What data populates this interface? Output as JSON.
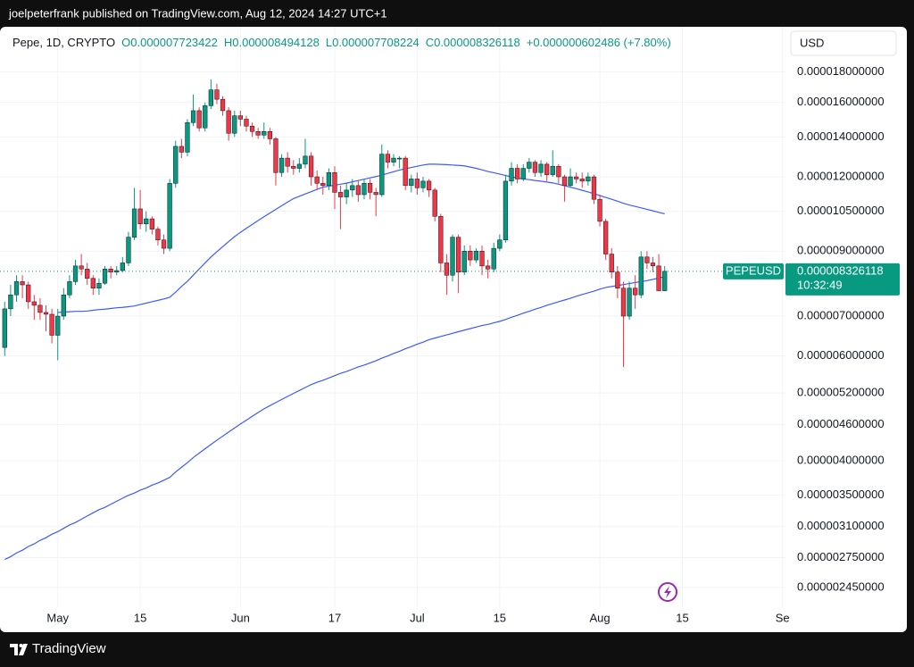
{
  "page": {
    "byline": "joelpeterfrank published on TradingView.com, Aug 12, 2024 14:27 UTC+1",
    "brand": "TradingView"
  },
  "chart_data": {
    "type": "candlestick",
    "symbol_info": "Pepe, 1D, CRYPTO",
    "ohlc_text": [
      "O0.000007723422",
      "H0.000008494128",
      "L0.000007708224",
      "C0.000008326118"
    ],
    "change_text": "+0.000000602486 (+7.80%)",
    "currency": "USD",
    "countdown": "10:32:49",
    "log_scale": true,
    "grid": true,
    "up_color": "#089981",
    "down_color": "#f23645",
    "ylim": [
      2.27e-06,
      1.9e-05
    ],
    "yticks": [
      {
        "value": 1.8e-05,
        "label": "0.000018000000"
      },
      {
        "value": 1.6e-05,
        "label": "0.000016000000"
      },
      {
        "value": 1.4e-05,
        "label": "0.000014000000"
      },
      {
        "value": 1.2e-05,
        "label": "0.000012000000"
      },
      {
        "value": 1.05e-05,
        "label": "0.000010500000"
      },
      {
        "value": 9e-06,
        "label": "0.000009000000"
      },
      {
        "value": 7e-06,
        "label": "0.000007000000"
      },
      {
        "value": 6e-06,
        "label": "0.000006000000"
      },
      {
        "value": 5.2e-06,
        "label": "0.000005200000"
      },
      {
        "value": 4.6e-06,
        "label": "0.000004600000"
      },
      {
        "value": 4e-06,
        "label": "0.000004000000"
      },
      {
        "value": 3.5e-06,
        "label": "0.000003500000"
      },
      {
        "value": 3.1e-06,
        "label": "0.000003100000"
      },
      {
        "value": 2.75e-06,
        "label": "0.000002750000"
      },
      {
        "value": 2.45e-06,
        "label": "0.000002450000"
      }
    ],
    "categories": [
      null,
      null,
      null,
      null,
      null,
      null,
      null,
      null,
      null,
      "May",
      null,
      null,
      null,
      null,
      null,
      null,
      null,
      null,
      null,
      null,
      null,
      null,
      null,
      "15",
      null,
      null,
      null,
      null,
      null,
      null,
      null,
      null,
      null,
      null,
      null,
      null,
      null,
      null,
      null,
      null,
      "Jun",
      null,
      null,
      null,
      null,
      null,
      null,
      null,
      null,
      null,
      null,
      null,
      null,
      null,
      null,
      null,
      "17",
      null,
      null,
      null,
      null,
      null,
      null,
      null,
      null,
      null,
      null,
      null,
      null,
      null,
      "Jul",
      null,
      null,
      null,
      null,
      null,
      null,
      null,
      null,
      null,
      null,
      null,
      null,
      null,
      "15",
      null,
      null,
      null,
      null,
      null,
      null,
      null,
      null,
      null,
      null,
      null,
      null,
      null,
      null,
      null,
      null,
      "Aug",
      null,
      null,
      null,
      null,
      null,
      null,
      null,
      null,
      null,
      null,
      null,
      null,
      null,
      "15",
      null,
      null,
      null,
      null,
      null,
      null,
      null,
      null,
      null,
      null,
      null,
      null,
      null,
      null,
      null,
      null,
      "Se"
    ],
    "series": [
      {
        "name": "PEPEUSD",
        "open": [
          6.2e-06,
          7.2e-06,
          7.6e-06,
          8e-06,
          7.9e-06,
          7.4e-06,
          7.3e-06,
          7.1e-06,
          7.05e-06,
          6.5e-06,
          7e-06,
          7.6e-06,
          8e-06,
          8.5e-06,
          8.4e-06,
          8.1e-06,
          7.8e-06,
          7.95e-06,
          8.4e-06,
          8.3e-06,
          8.35e-06,
          8.6e-06,
          9.5e-06,
          1.06e-05,
          1e-05,
          1.02e-05,
          9.8e-06,
          9.4e-06,
          9.1e-06,
          1.17e-05,
          1.35e-05,
          1.32e-05,
          1.48e-05,
          1.55e-05,
          1.45e-05,
          1.58e-05,
          1.68e-05,
          1.62e-05,
          1.55e-05,
          1.42e-05,
          1.52e-05,
          1.5e-05,
          1.46e-05,
          1.43e-05,
          1.41e-05,
          1.43e-05,
          1.39e-05,
          1.22e-05,
          1.29e-05,
          1.25e-05,
          1.24e-05,
          1.26e-05,
          1.3e-05,
          1.2e-05,
          1.17e-05,
          1.16e-05,
          1.22e-05,
          1.13e-05,
          1.11e-05,
          1.14e-05,
          1.16e-05,
          1.12e-05,
          1.17e-05,
          1.13e-05,
          1.12e-05,
          1.31e-05,
          1.27e-05,
          1.29e-05,
          1.29e-05,
          1.16e-05,
          1.19e-05,
          1.15e-05,
          1.18e-05,
          1.14e-05,
          1.03e-05,
          8.6e-06,
          8.2e-06,
          9.5e-06,
          8.3e-06,
          9e-06,
          8.7e-06,
          9e-06,
          8.5e-06,
          8.4e-06,
          9.1e-06,
          9.4e-06,
          1.18e-05,
          1.24e-05,
          1.19e-05,
          1.24e-05,
          1.27e-05,
          1.22e-05,
          1.26e-05,
          1.21e-05,
          1.25e-05,
          1.2e-05,
          1.16e-05,
          1.2e-05,
          1.19e-05,
          1.18e-05,
          1.2e-05,
          1.1e-05,
          1.01e-05,
          8.9e-06,
          8.3e-06,
          7.8e-06,
          7e-06,
          7.8e-06,
          7.6e-06,
          8.8e-06,
          8.6e-06,
          8.5e-06,
          7.723422e-06,
          null,
          null,
          null,
          null,
          null,
          null,
          null,
          null,
          null,
          null,
          null,
          null,
          null,
          null,
          null,
          null,
          null,
          null,
          null,
          null
        ],
        "high": [
          7.4e-06,
          7.9e-06,
          8.2e-06,
          8.2e-06,
          8e-06,
          7.6e-06,
          7.5e-06,
          7.3e-06,
          7.2e-06,
          7.2e-06,
          7.8e-06,
          8.2e-06,
          8.7e-06,
          8.9e-06,
          8.6e-06,
          8.2e-06,
          8.1e-06,
          8.5e-06,
          8.5e-06,
          8.5e-06,
          8.8e-06,
          9.7e-06,
          1.15e-05,
          1.14e-05,
          1.05e-05,
          1.03e-05,
          9.9e-06,
          9.6e-06,
          1.19e-05,
          1.38e-05,
          1.39e-05,
          1.5e-05,
          1.65e-05,
          1.57e-05,
          1.6e-05,
          1.75e-05,
          1.72e-05,
          1.64e-05,
          1.57e-05,
          1.55e-05,
          1.55e-05,
          1.52e-05,
          1.48e-05,
          1.45e-05,
          1.48e-05,
          1.45e-05,
          1.4e-05,
          1.31e-05,
          1.32e-05,
          1.28e-05,
          1.29e-05,
          1.39e-05,
          1.32e-05,
          1.23e-05,
          1.2e-05,
          1.24e-05,
          1.25e-05,
          1.16e-05,
          1.17e-05,
          1.19e-05,
          1.18e-05,
          1.19e-05,
          1.19e-05,
          1.15e-05,
          1.36e-05,
          1.33e-05,
          1.31e-05,
          1.3e-05,
          1.3e-05,
          1.21e-05,
          1.22e-05,
          1.2e-05,
          1.19e-05,
          1.15e-05,
          1.04e-05,
          8.9e-06,
          9.6e-06,
          9.6e-06,
          9.2e-06,
          9.2e-06,
          9.1e-06,
          9.2e-06,
          8.7e-06,
          9.3e-06,
          9.6e-06,
          1.21e-05,
          1.27e-05,
          1.26e-05,
          1.26e-05,
          1.29e-05,
          1.28e-05,
          1.28e-05,
          1.27e-05,
          1.33e-05,
          1.26e-05,
          1.21e-05,
          1.24e-05,
          1.22e-05,
          1.22e-05,
          1.22e-05,
          1.21e-05,
          1.12e-05,
          1.02e-05,
          9.1e-06,
          8.5e-06,
          8e-06,
          8e-06,
          8.2e-06,
          9e-06,
          9e-06,
          8.8e-06,
          8.9e-06,
          8.494128e-06,
          null,
          null,
          null,
          null,
          null,
          null,
          null,
          null,
          null,
          null,
          null,
          null,
          null,
          null,
          null,
          null,
          null,
          null,
          null,
          null
        ],
        "low": [
          6e-06,
          7e-06,
          7.4e-06,
          7.5e-06,
          7.2e-06,
          6.9e-06,
          6.9e-06,
          6.6e-06,
          6.3e-06,
          5.9e-06,
          6.9e-06,
          7.5e-06,
          7.9e-06,
          8.2e-06,
          7.9e-06,
          7.6e-06,
          7.6e-06,
          7.9e-06,
          8.1e-06,
          8.2e-06,
          8.3e-06,
          8.5e-06,
          9.4e-06,
          9.8e-06,
          9.7e-06,
          9.6e-06,
          9.2e-06,
          8.9e-06,
          9e-06,
          1.15e-05,
          1.29e-05,
          1.3e-05,
          1.46e-05,
          1.43e-05,
          1.43e-05,
          1.56e-05,
          1.59e-05,
          1.52e-05,
          1.38e-05,
          1.4e-05,
          1.46e-05,
          1.43e-05,
          1.4e-05,
          1.39e-05,
          1.39e-05,
          1.36e-05,
          1.16e-05,
          1.2e-05,
          1.22e-05,
          1.21e-05,
          1.22e-05,
          1.24e-05,
          1.16e-05,
          1.14e-05,
          1.12e-05,
          1.14e-05,
          1.06e-05,
          9.8e-06,
          1.08e-05,
          1.11e-05,
          1.09e-05,
          1.1e-05,
          1.1e-05,
          1.03e-05,
          1.11e-05,
          1.24e-05,
          1.25e-05,
          1.24e-05,
          1.14e-05,
          1.13e-05,
          1.12e-05,
          1.13e-05,
          1.11e-05,
          1.01e-05,
          8.3e-06,
          7.6e-06,
          8e-06,
          7.65e-06,
          8.2e-06,
          8.5e-06,
          8.6e-06,
          8.2e-06,
          8.1e-06,
          8.3e-06,
          9e-06,
          9.3e-06,
          1.16e-05,
          1.17e-05,
          1.18e-05,
          1.22e-05,
          1.2e-05,
          1.2e-05,
          1.18e-05,
          1.2e-05,
          1.17e-05,
          1.09e-05,
          1.15e-05,
          1.17e-05,
          1.15e-05,
          1.16e-05,
          1.08e-05,
          9.9e-06,
          8.7e-06,
          8.1e-06,
          7.5e-06,
          5.75e-06,
          6.9e-06,
          7.2e-06,
          7.5e-06,
          8.4e-06,
          8.3e-06,
          7.7e-06,
          7.708224e-06,
          null,
          null,
          null,
          null,
          null,
          null,
          null,
          null,
          null,
          null,
          null,
          null,
          null,
          null,
          null,
          null,
          null,
          null,
          null,
          null
        ],
        "close": [
          7.2e-06,
          7.6e-06,
          8e-06,
          7.9e-06,
          7.4e-06,
          7.3e-06,
          7.1e-06,
          7.05e-06,
          6.5e-06,
          7e-06,
          7.6e-06,
          8e-06,
          8.5e-06,
          8.4e-06,
          8.1e-06,
          7.8e-06,
          7.95e-06,
          8.4e-06,
          8.3e-06,
          8.35e-06,
          8.6e-06,
          9.5e-06,
          1.06e-05,
          1e-05,
          1.02e-05,
          9.8e-06,
          9.4e-06,
          9.1e-06,
          1.17e-05,
          1.35e-05,
          1.32e-05,
          1.48e-05,
          1.55e-05,
          1.45e-05,
          1.58e-05,
          1.68e-05,
          1.62e-05,
          1.55e-05,
          1.42e-05,
          1.52e-05,
          1.5e-05,
          1.46e-05,
          1.43e-05,
          1.41e-05,
          1.43e-05,
          1.39e-05,
          1.22e-05,
          1.29e-05,
          1.25e-05,
          1.24e-05,
          1.26e-05,
          1.3e-05,
          1.2e-05,
          1.17e-05,
          1.16e-05,
          1.22e-05,
          1.13e-05,
          1.11e-05,
          1.14e-05,
          1.16e-05,
          1.12e-05,
          1.17e-05,
          1.13e-05,
          1.12e-05,
          1.31e-05,
          1.27e-05,
          1.29e-05,
          1.29e-05,
          1.16e-05,
          1.19e-05,
          1.15e-05,
          1.18e-05,
          1.14e-05,
          1.03e-05,
          8.6e-06,
          8.2e-06,
          9.5e-06,
          8.3e-06,
          9e-06,
          8.7e-06,
          9e-06,
          8.5e-06,
          8.4e-06,
          9.1e-06,
          9.4e-06,
          1.18e-05,
          1.24e-05,
          1.19e-05,
          1.24e-05,
          1.27e-05,
          1.22e-05,
          1.26e-05,
          1.21e-05,
          1.25e-05,
          1.2e-05,
          1.16e-05,
          1.2e-05,
          1.19e-05,
          1.18e-05,
          1.2e-05,
          1.1e-05,
          1.01e-05,
          8.9e-06,
          8.3e-06,
          7.8e-06,
          7e-06,
          7.8e-06,
          7.6e-06,
          8.8e-06,
          8.6e-06,
          8.5e-06,
          7.723632e-06,
          8.326118e-06,
          null,
          null,
          null,
          null,
          null,
          null,
          null,
          null,
          null,
          null,
          null,
          null,
          null,
          null,
          null,
          null,
          null,
          null,
          null,
          null
        ],
        "last_label": "0.000008326118"
      }
    ],
    "lines": [
      {
        "color": "#3d5afe",
        "values": [
          null,
          null,
          null,
          null,
          null,
          null,
          null,
          null,
          null,
          7.1e-06,
          7.11e-06,
          7.12e-06,
          7.13e-06,
          7.13e-06,
          7.14e-06,
          7.16e-06,
          7.18e-06,
          7.19e-06,
          7.21e-06,
          7.23e-06,
          7.24e-06,
          7.26e-06,
          7.28e-06,
          7.32e-06,
          7.36e-06,
          7.4e-06,
          7.44e-06,
          7.48e-06,
          7.53e-06,
          7.68e-06,
          7.85e-06,
          8.01e-06,
          8.2e-06,
          8.4e-06,
          8.6e-06,
          8.8e-06,
          8.98e-06,
          9.16e-06,
          9.34e-06,
          9.52e-06,
          9.68e-06,
          9.83e-06,
          9.98e-06,
          1.013e-05,
          1.028e-05,
          1.043e-05,
          1.058e-05,
          1.073e-05,
          1.088e-05,
          1.103e-05,
          1.113e-05,
          1.123e-05,
          1.133e-05,
          1.143e-05,
          1.153e-05,
          1.157e-05,
          1.162e-05,
          1.166e-05,
          1.171e-05,
          1.177e-05,
          1.183e-05,
          1.189e-05,
          1.195e-05,
          1.201e-05,
          1.208e-05,
          1.216e-05,
          1.224e-05,
          1.232e-05,
          1.238e-05,
          1.244e-05,
          1.25e-05,
          1.256e-05,
          1.26e-05,
          1.26e-05,
          1.259e-05,
          1.258e-05,
          1.256e-05,
          1.254e-05,
          1.252e-05,
          1.246e-05,
          1.24e-05,
          1.233e-05,
          1.225e-05,
          1.219e-05,
          1.213e-05,
          1.206e-05,
          1.2e-05,
          1.194e-05,
          1.19e-05,
          1.187e-05,
          1.183e-05,
          1.18e-05,
          1.176e-05,
          1.172e-05,
          1.166e-05,
          1.159e-05,
          1.153e-05,
          1.146e-05,
          1.139e-05,
          1.132e-05,
          1.124e-05,
          1.116e-05,
          1.108e-05,
          1.1e-05,
          1.092e-05,
          1.083e-05,
          1.076e-05,
          1.07e-05,
          1.064e-05,
          1.058e-05,
          1.052e-05,
          1.046e-05,
          1.04e-05,
          null,
          null,
          null,
          null,
          null,
          null,
          null,
          null,
          null,
          null,
          null,
          null,
          null,
          null,
          null,
          null,
          null,
          null,
          null,
          null
        ]
      },
      {
        "color": "#3d5afe",
        "values": [
          2.73e-06,
          2.76e-06,
          2.8e-06,
          2.83e-06,
          2.87e-06,
          2.9e-06,
          2.94e-06,
          2.97e-06,
          3.01e-06,
          3.04e-06,
          3.08e-06,
          3.12e-06,
          3.15e-06,
          3.19e-06,
          3.23e-06,
          3.27e-06,
          3.31e-06,
          3.34e-06,
          3.38e-06,
          3.42e-06,
          3.46e-06,
          3.5e-06,
          3.53e-06,
          3.57e-06,
          3.6e-06,
          3.64e-06,
          3.67e-06,
          3.71e-06,
          3.75e-06,
          3.83e-06,
          3.9e-06,
          3.97e-06,
          4.05e-06,
          4.12e-06,
          4.19e-06,
          4.26e-06,
          4.33e-06,
          4.4e-06,
          4.47e-06,
          4.54e-06,
          4.61e-06,
          4.68e-06,
          4.75e-06,
          4.82e-06,
          4.89e-06,
          4.95e-06,
          5.01e-06,
          5.07e-06,
          5.13e-06,
          5.19e-06,
          5.25e-06,
          5.31e-06,
          5.37e-06,
          5.42e-06,
          5.46e-06,
          5.51e-06,
          5.56e-06,
          5.61e-06,
          5.65e-06,
          5.7e-06,
          5.75e-06,
          5.79e-06,
          5.84e-06,
          5.89e-06,
          5.95e-06,
          6e-06,
          6.06e-06,
          6.11e-06,
          6.17e-06,
          6.22e-06,
          6.28e-06,
          6.33e-06,
          6.39e-06,
          6.43e-06,
          6.47e-06,
          6.51e-06,
          6.55e-06,
          6.59e-06,
          6.63e-06,
          6.67e-06,
          6.71e-06,
          6.75e-06,
          6.78e-06,
          6.82e-06,
          6.86e-06,
          6.91e-06,
          6.97e-06,
          7.02e-06,
          7.08e-06,
          7.13e-06,
          7.19e-06,
          7.24e-06,
          7.3e-06,
          7.35e-06,
          7.4e-06,
          7.45e-06,
          7.5e-06,
          7.56e-06,
          7.61e-06,
          7.66e-06,
          7.71e-06,
          7.77e-06,
          7.82e-06,
          7.85e-06,
          7.88e-06,
          7.91e-06,
          7.94e-06,
          7.97e-06,
          8e-06,
          8.03e-06,
          8.07e-06,
          8.11e-06,
          8.15e-06,
          null,
          null,
          null,
          null,
          null,
          null,
          null,
          null,
          null,
          null,
          null,
          null,
          null,
          null,
          null,
          null,
          null,
          null,
          null,
          null
        ]
      }
    ]
  }
}
